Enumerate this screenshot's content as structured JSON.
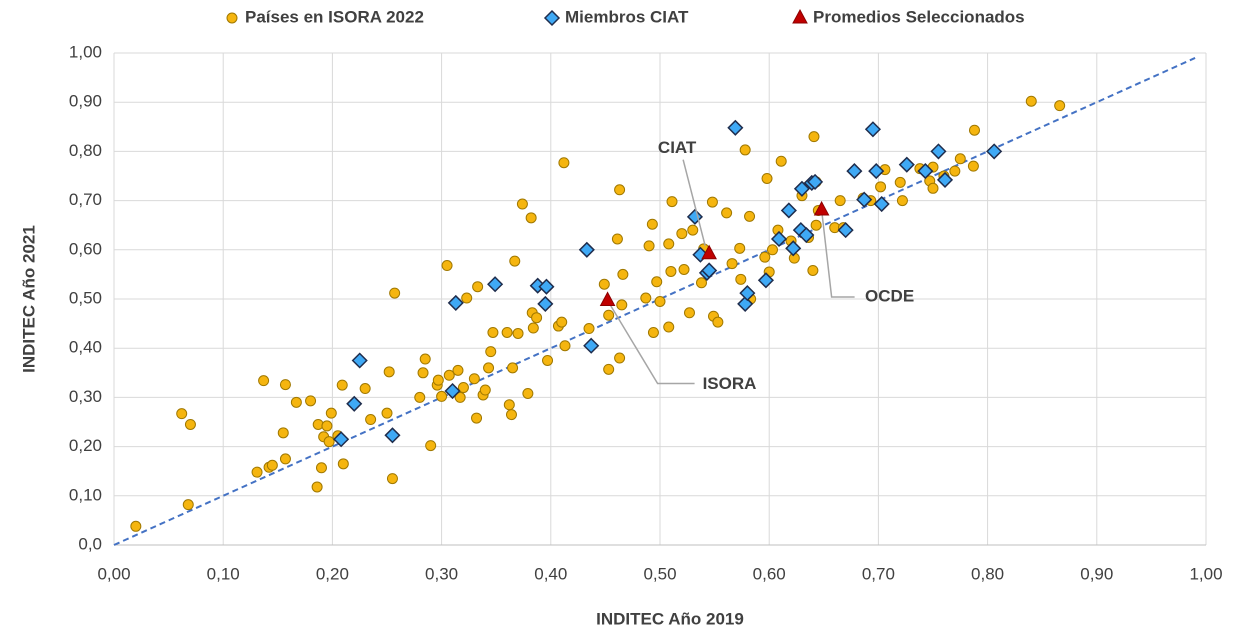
{
  "chart_data": {
    "type": "scatter",
    "xlabel": "INDITEC Año 2019",
    "ylabel": "INDITEC Año 2021",
    "xlim": [
      0,
      1
    ],
    "ylim": [
      0,
      1
    ],
    "xticks": [
      {
        "value": 0,
        "label": "0,00"
      },
      {
        "value": 0.1,
        "label": "0,10"
      },
      {
        "value": 0.2,
        "label": "0,20"
      },
      {
        "value": 0.3,
        "label": "0,30"
      },
      {
        "value": 0.4,
        "label": "0,40"
      },
      {
        "value": 0.5,
        "label": "0,50"
      },
      {
        "value": 0.6,
        "label": "0,60"
      },
      {
        "value": 0.7,
        "label": "0,70"
      },
      {
        "value": 0.8,
        "label": "0,80"
      },
      {
        "value": 0.9,
        "label": "0,90"
      },
      {
        "value": 1,
        "label": "1,00"
      }
    ],
    "yticks": [
      {
        "value": 0,
        "label": "0,0"
      },
      {
        "value": 0.1,
        "label": "0,10"
      },
      {
        "value": 0.2,
        "label": "0,20"
      },
      {
        "value": 0.3,
        "label": "0,30"
      },
      {
        "value": 0.4,
        "label": "0,40"
      },
      {
        "value": 0.5,
        "label": "0,50"
      },
      {
        "value": 0.6,
        "label": "0,60"
      },
      {
        "value": 0.7,
        "label": "0,70"
      },
      {
        "value": 0.8,
        "label": "0,80"
      },
      {
        "value": 0.9,
        "label": "0,90"
      },
      {
        "value": 1,
        "label": "1,00"
      }
    ],
    "grid": true,
    "legend": "top",
    "identity_line": {
      "x": [
        0,
        0.99
      ],
      "y": [
        0,
        0.99
      ],
      "color": "#4472c4"
    },
    "series": [
      {
        "name": "Países en ISORA 2022",
        "color": "#f5b50f",
        "marker": "circle",
        "x": [
          0.02,
          0.062,
          0.068,
          0.07,
          0.131,
          0.137,
          0.142,
          0.145,
          0.155,
          0.157,
          0.157,
          0.167,
          0.18,
          0.186,
          0.187,
          0.19,
          0.192,
          0.195,
          0.197,
          0.199,
          0.205,
          0.209,
          0.21,
          0.23,
          0.235,
          0.25,
          0.252,
          0.255,
          0.257,
          0.28,
          0.283,
          0.285,
          0.29,
          0.296,
          0.297,
          0.3,
          0.305,
          0.307,
          0.315,
          0.317,
          0.32,
          0.323,
          0.33,
          0.332,
          0.333,
          0.338,
          0.34,
          0.343,
          0.345,
          0.347,
          0.36,
          0.362,
          0.364,
          0.365,
          0.367,
          0.37,
          0.374,
          0.379,
          0.382,
          0.383,
          0.384,
          0.387,
          0.397,
          0.407,
          0.41,
          0.412,
          0.413,
          0.435,
          0.449,
          0.453,
          0.453,
          0.461,
          0.463,
          0.463,
          0.465,
          0.466,
          0.487,
          0.49,
          0.493,
          0.494,
          0.497,
          0.5,
          0.508,
          0.508,
          0.51,
          0.511,
          0.52,
          0.522,
          0.527,
          0.53,
          0.538,
          0.54,
          0.548,
          0.549,
          0.553,
          0.561,
          0.566,
          0.573,
          0.574,
          0.578,
          0.582,
          0.583,
          0.596,
          0.598,
          0.6,
          0.603,
          0.608,
          0.611,
          0.62,
          0.623,
          0.63,
          0.636,
          0.64,
          0.641,
          0.643,
          0.643,
          0.645,
          0.66,
          0.665,
          0.668,
          0.686,
          0.693,
          0.702,
          0.706,
          0.72,
          0.722,
          0.738,
          0.747,
          0.75,
          0.75,
          0.76,
          0.77,
          0.775,
          0.787,
          0.788,
          0.84,
          0.866
        ],
        "values": [
          0.038,
          0.267,
          0.082,
          0.245,
          0.148,
          0.334,
          0.158,
          0.162,
          0.228,
          0.326,
          0.175,
          0.29,
          0.293,
          0.118,
          0.245,
          0.157,
          0.22,
          0.242,
          0.21,
          0.268,
          0.222,
          0.325,
          0.165,
          0.318,
          0.255,
          0.268,
          0.352,
          0.135,
          0.512,
          0.3,
          0.35,
          0.378,
          0.202,
          0.325,
          0.335,
          0.302,
          0.568,
          0.345,
          0.355,
          0.3,
          0.32,
          0.502,
          0.338,
          0.258,
          0.525,
          0.305,
          0.315,
          0.36,
          0.393,
          0.432,
          0.432,
          0.285,
          0.265,
          0.36,
          0.577,
          0.43,
          0.693,
          0.308,
          0.665,
          0.472,
          0.441,
          0.462,
          0.375,
          0.445,
          0.453,
          0.777,
          0.405,
          0.44,
          0.53,
          0.357,
          0.467,
          0.622,
          0.722,
          0.38,
          0.488,
          0.55,
          0.502,
          0.608,
          0.652,
          0.432,
          0.535,
          0.495,
          0.443,
          0.612,
          0.556,
          0.698,
          0.633,
          0.56,
          0.472,
          0.64,
          0.533,
          0.602,
          0.697,
          0.465,
          0.453,
          0.675,
          0.572,
          0.603,
          0.54,
          0.803,
          0.668,
          0.5,
          0.585,
          0.745,
          0.555,
          0.6,
          0.64,
          0.78,
          0.618,
          0.583,
          0.71,
          0.625,
          0.558,
          0.83,
          0.738,
          0.65,
          0.68,
          0.645,
          0.7,
          0.645,
          0.705,
          0.7,
          0.728,
          0.763,
          0.737,
          0.7,
          0.765,
          0.74,
          0.768,
          0.725,
          0.75,
          0.76,
          0.785,
          0.77,
          0.843,
          0.902,
          0.893
        ]
      },
      {
        "name": "Miembros CIAT",
        "color": "#3fa9f5",
        "marker": "diamond",
        "x": [
          0.225,
          0.22,
          0.208,
          0.255,
          0.31,
          0.313,
          0.349,
          0.388,
          0.396,
          0.395,
          0.433,
          0.437,
          0.532,
          0.537,
          0.543,
          0.545,
          0.569,
          0.578,
          0.58,
          0.597,
          0.609,
          0.618,
          0.622,
          0.629,
          0.63,
          0.634,
          0.639,
          0.642,
          0.67,
          0.678,
          0.687,
          0.695,
          0.698,
          0.703,
          0.726,
          0.743,
          0.755,
          0.761,
          0.806
        ],
        "values": [
          0.375,
          0.287,
          0.215,
          0.223,
          0.313,
          0.492,
          0.53,
          0.527,
          0.525,
          0.49,
          0.6,
          0.405,
          0.667,
          0.59,
          0.553,
          0.558,
          0.848,
          0.49,
          0.512,
          0.538,
          0.622,
          0.68,
          0.603,
          0.64,
          0.724,
          0.63,
          0.736,
          0.738,
          0.64,
          0.76,
          0.702,
          0.845,
          0.76,
          0.693,
          0.773,
          0.76,
          0.8,
          0.742,
          0.8
        ]
      },
      {
        "name": "Promedios Seleccionados",
        "color": "#c00000",
        "marker": "triangle",
        "x": [
          0.452,
          0.545,
          0.648
        ],
        "values": [
          0.497,
          0.592,
          0.681
        ],
        "point_labels": [
          "ISORA",
          "CIAT",
          "OCDE"
        ]
      }
    ]
  }
}
